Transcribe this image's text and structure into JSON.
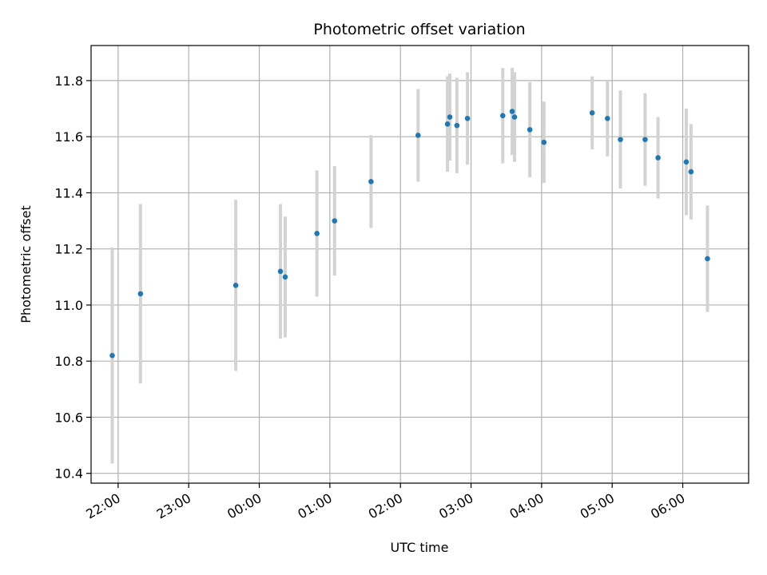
{
  "chart_data": {
    "type": "scatter",
    "title": "Photometric offset variation",
    "xlabel": "UTC time",
    "ylabel": "Photometric offset",
    "grid": true,
    "x_unit": "UTC time (hours)",
    "xlim": [
      "21:37",
      "06:56"
    ],
    "ylim": [
      10.365,
      11.925
    ],
    "x_ticks": [
      "22:00",
      "23:00",
      "00:00",
      "01:00",
      "02:00",
      "03:00",
      "04:00",
      "05:00",
      "06:00"
    ],
    "y_ticks": [
      "10.4",
      "10.6",
      "10.8",
      "11.0",
      "11.2",
      "11.4",
      "11.6",
      "11.8"
    ],
    "colors": {
      "points": "#1f77b4",
      "errorbars": "#d3d3d3",
      "grid": "#b0b0b0"
    },
    "points": [
      {
        "x": "21:55",
        "y": 10.82,
        "err": 0.385
      },
      {
        "x": "22:19",
        "y": 11.04,
        "err": 0.32
      },
      {
        "x": "23:40",
        "y": 11.07,
        "err": 0.305
      },
      {
        "x": "00:18",
        "y": 11.12,
        "err": 0.24
      },
      {
        "x": "00:22",
        "y": 11.1,
        "err": 0.215
      },
      {
        "x": "00:49",
        "y": 11.255,
        "err": 0.225
      },
      {
        "x": "01:04",
        "y": 11.3,
        "err": 0.195
      },
      {
        "x": "01:35",
        "y": 11.44,
        "err": 0.165
      },
      {
        "x": "02:15",
        "y": 11.605,
        "err": 0.165
      },
      {
        "x": "02:40",
        "y": 11.645,
        "err": 0.17
      },
      {
        "x": "02:42",
        "y": 11.67,
        "err": 0.155
      },
      {
        "x": "02:48",
        "y": 11.64,
        "err": 0.17
      },
      {
        "x": "02:57",
        "y": 11.665,
        "err": 0.165
      },
      {
        "x": "03:27",
        "y": 11.675,
        "err": 0.17
      },
      {
        "x": "03:35",
        "y": 11.69,
        "err": 0.155
      },
      {
        "x": "03:37",
        "y": 11.67,
        "err": 0.16
      },
      {
        "x": "03:50",
        "y": 11.625,
        "err": 0.17
      },
      {
        "x": "04:02",
        "y": 11.58,
        "err": 0.145
      },
      {
        "x": "04:43",
        "y": 11.685,
        "err": 0.13
      },
      {
        "x": "04:56",
        "y": 11.665,
        "err": 0.135
      },
      {
        "x": "05:07",
        "y": 11.59,
        "err": 0.175
      },
      {
        "x": "05:28",
        "y": 11.59,
        "err": 0.165
      },
      {
        "x": "05:39",
        "y": 11.525,
        "err": 0.145
      },
      {
        "x": "06:03",
        "y": 11.51,
        "err": 0.19
      },
      {
        "x": "06:07",
        "y": 11.475,
        "err": 0.17
      },
      {
        "x": "06:21",
        "y": 11.165,
        "err": 0.19
      }
    ]
  }
}
